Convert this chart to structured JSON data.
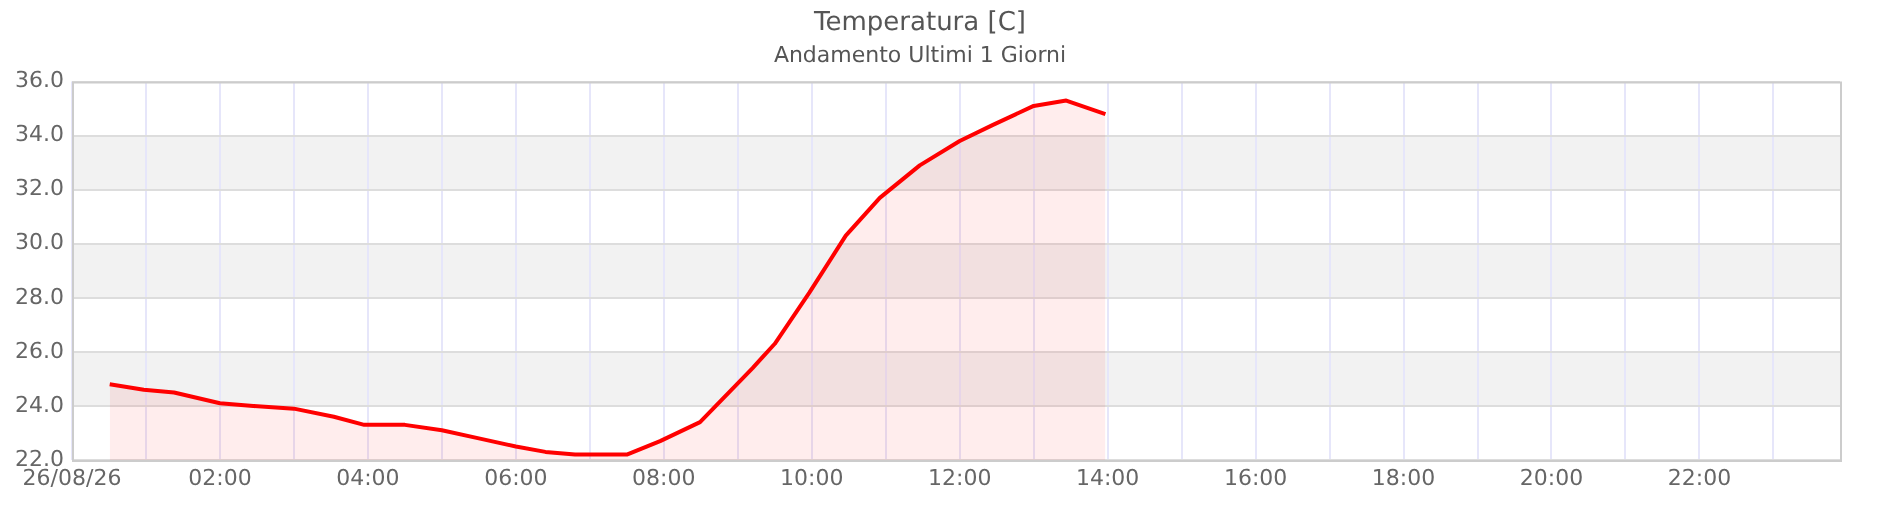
{
  "chart_data": {
    "type": "area",
    "title": "Temperatura [C]",
    "subtitle": "Andamento Ultimi 1 Giorni",
    "x": [
      0.51,
      0.97,
      1.38,
      2,
      2.45,
      3,
      3.54,
      3.95,
      4.5,
      5,
      5.5,
      6,
      6.4,
      6.8,
      7.5,
      7.95,
      8.49,
      9.2,
      9.5,
      9.97,
      10.46,
      10.92,
      11.46,
      12,
      12.45,
      13,
      13.44,
      13.97
    ],
    "series": [
      {
        "color": "#ff0000",
        "values": [
          24.8,
          24.6,
          24.5,
          24.1,
          24.0,
          23.9,
          23.6,
          23.3,
          23.3,
          23.1,
          22.8,
          22.5,
          22.3,
          22.2,
          22.2,
          22.7,
          23.4,
          25.4,
          26.3,
          28.2,
          30.3,
          31.7,
          32.9,
          33.8,
          34.4,
          35.1,
          35.3,
          34.8
        ]
      }
    ],
    "xlim": [
      0,
      23.9
    ],
    "xticks": [
      {
        "value": 0,
        "label": "26/08/26"
      },
      {
        "value": 1,
        "label": null
      },
      {
        "value": 2,
        "label": "02:00"
      },
      {
        "value": 3,
        "label": null
      },
      {
        "value": 4,
        "label": "04:00"
      },
      {
        "value": 5,
        "label": null
      },
      {
        "value": 6,
        "label": "06:00"
      },
      {
        "value": 7,
        "label": null
      },
      {
        "value": 8,
        "label": "08:00"
      },
      {
        "value": 9,
        "label": null
      },
      {
        "value": 10,
        "label": "10:00"
      },
      {
        "value": 11,
        "label": null
      },
      {
        "value": 12,
        "label": "12:00"
      },
      {
        "value": 13,
        "label": null
      },
      {
        "value": 14,
        "label": "14:00"
      },
      {
        "value": 15,
        "label": null
      },
      {
        "value": 16,
        "label": "16:00"
      },
      {
        "value": 17,
        "label": null
      },
      {
        "value": 18,
        "label": "18:00"
      },
      {
        "value": 19,
        "label": null
      },
      {
        "value": 20,
        "label": "20:00"
      },
      {
        "value": 21,
        "label": null
      },
      {
        "value": 22,
        "label": "22:00"
      },
      {
        "value": 23,
        "label": null
      }
    ],
    "ylim": [
      22,
      36
    ],
    "yticks": [
      {
        "value": 22,
        "label": "22.0"
      },
      {
        "value": 24,
        "label": "24.0"
      },
      {
        "value": 26,
        "label": "26.0"
      },
      {
        "value": 28,
        "label": "28.0"
      },
      {
        "value": 30,
        "label": "30.0"
      },
      {
        "value": 32,
        "label": "32.0"
      },
      {
        "value": 34,
        "label": "34.0"
      },
      {
        "value": 36,
        "label": "36.0"
      }
    ],
    "bands": [
      {
        "axis": "y",
        "from": 24,
        "to": 26,
        "color": "#f2f2f2"
      },
      {
        "axis": "y",
        "from": 28,
        "to": 30,
        "color": "#f2f2f2"
      },
      {
        "axis": "y",
        "from": 32,
        "to": 34,
        "color": "#f2f2f2"
      }
    ],
    "grid": true,
    "legend": false,
    "marker": "none",
    "line_style": "solid"
  }
}
